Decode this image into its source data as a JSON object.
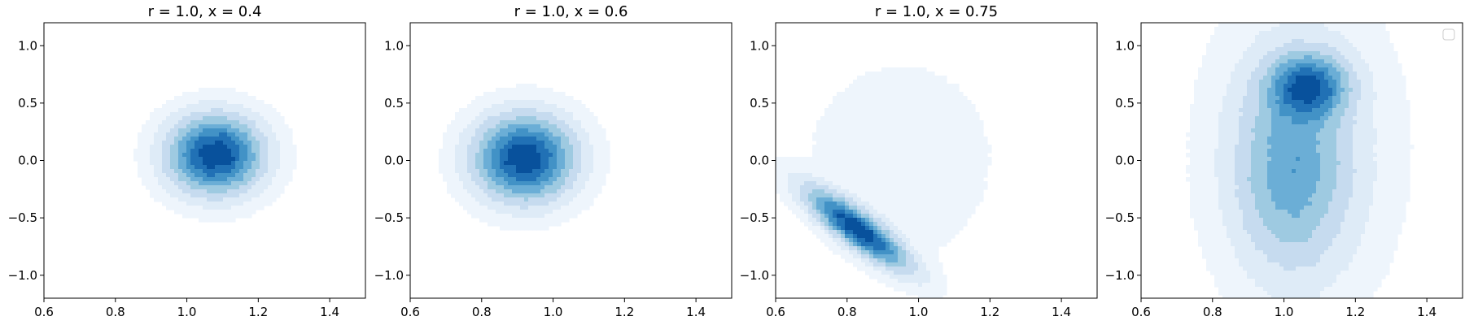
{
  "chart_data": [
    {
      "type": "contour",
      "title": "r = 1.0, x = 0.4",
      "xlabel": "",
      "ylabel": "",
      "xlim": [
        0.6,
        1.5
      ],
      "ylim": [
        -1.2,
        1.2
      ],
      "xticks": [
        "0.6",
        "0.8",
        "1.0",
        "1.2",
        "1.4"
      ],
      "yticks": [
        "−1.0",
        "−0.5",
        "0.0",
        "0.5",
        "1.0"
      ],
      "colormap": "Blues",
      "blobs": [
        {
          "cx": 1.08,
          "cy": 0.05,
          "sx": 0.085,
          "sy": 0.22,
          "rho": 0.0,
          "w": 1.0
        }
      ]
    },
    {
      "type": "contour",
      "title": "r = 1.0, x = 0.6",
      "xlabel": "",
      "ylabel": "",
      "xlim": [
        0.6,
        1.5
      ],
      "ylim": [
        -1.2,
        1.2
      ],
      "xticks": [
        "0.6",
        "0.8",
        "1.0",
        "1.2",
        "1.4"
      ],
      "yticks": [
        "−1.0",
        "−0.5",
        "0.0",
        "0.5",
        "1.0"
      ],
      "colormap": "Blues",
      "blobs": [
        {
          "cx": 0.92,
          "cy": 0.02,
          "sx": 0.09,
          "sy": 0.24,
          "rho": 0.0,
          "w": 1.0
        }
      ]
    },
    {
      "type": "contour",
      "title": "r = 1.0, x = 0.75",
      "xlabel": "",
      "ylabel": "",
      "xlim": [
        0.6,
        1.5
      ],
      "ylim": [
        -1.2,
        1.2
      ],
      "xticks": [
        "0.6",
        "0.8",
        "1.0",
        "1.2",
        "1.4"
      ],
      "yticks": [
        "−1.0",
        "−0.5",
        "0.0",
        "0.5",
        "1.0"
      ],
      "colormap": "Blues",
      "blobs": [
        {
          "cx": 0.83,
          "cy": -0.6,
          "sx": 0.09,
          "sy": 0.22,
          "rho": -0.85,
          "w": 1.0
        },
        {
          "cx": 0.95,
          "cy": 0.0,
          "sx": 0.18,
          "sy": 0.6,
          "rho": 0.0,
          "w": 0.08
        }
      ]
    },
    {
      "type": "contour",
      "title": "",
      "xlabel": "",
      "ylabel": "",
      "xlim": [
        0.6,
        1.5
      ],
      "ylim": [
        -1.2,
        1.2
      ],
      "xticks": [
        "0.6",
        "0.8",
        "1.0",
        "1.2",
        "1.4"
      ],
      "yticks": [
        "−1.0",
        "−0.5",
        "0.0",
        "0.5",
        "1.0"
      ],
      "colormap": "Blues",
      "legend": "top-right (empty)",
      "blobs": [
        {
          "cx": 1.07,
          "cy": 0.65,
          "sx": 0.07,
          "sy": 0.18,
          "rho": 0.0,
          "w": 1.0
        },
        {
          "cx": 1.02,
          "cy": -0.1,
          "sx": 0.1,
          "sy": 0.55,
          "rho": 0.0,
          "w": 0.55
        },
        {
          "cx": 1.05,
          "cy": 0.1,
          "sx": 0.16,
          "sy": 0.85,
          "rho": 0.0,
          "w": 0.25
        }
      ]
    }
  ]
}
